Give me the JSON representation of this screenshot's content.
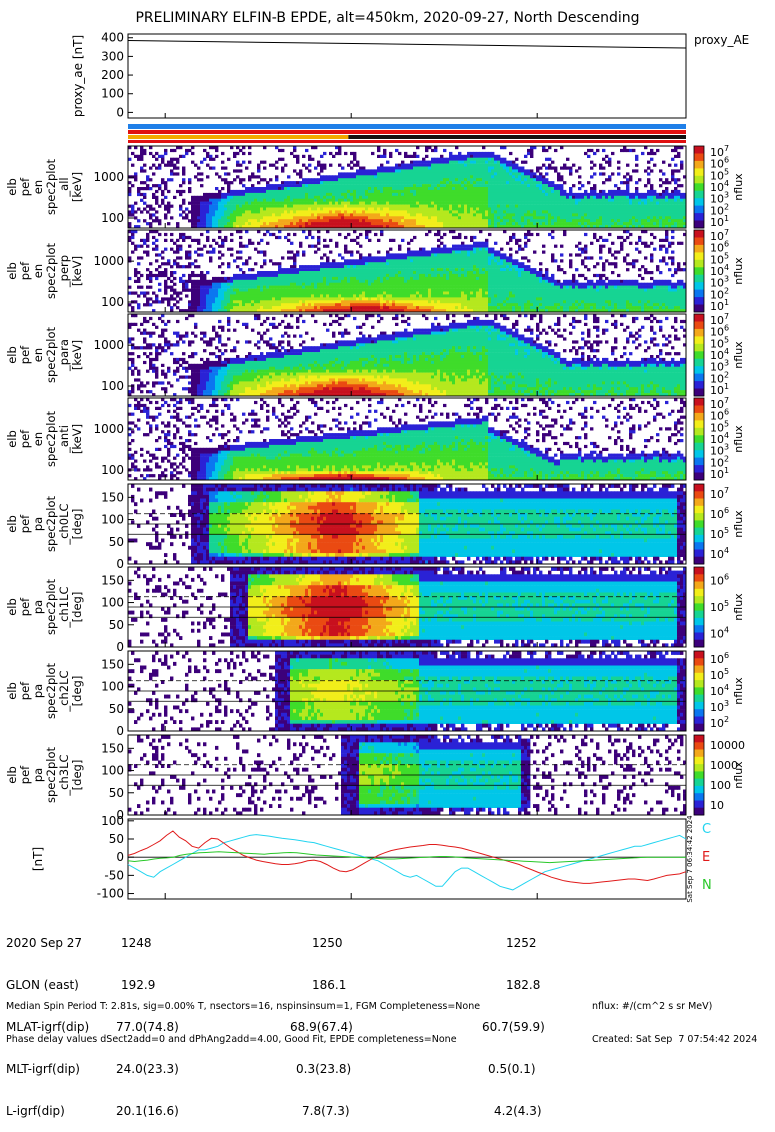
{
  "title": "PRELIMINARY ELFIN-B EPDE, alt=450km, 2020-09-27, North Descending",
  "colors": {
    "flux_palette": [
      "#3c007a",
      "#2a22d6",
      "#0b76f0",
      "#00c6e8",
      "#16d493",
      "#3fdc2a",
      "#b5e81e",
      "#f2ee1a",
      "#f3a81a",
      "#ea4a12",
      "#c8101e"
    ]
  },
  "chart_data": [
    {
      "type": "line",
      "panel": "proxy_ae",
      "ylabel": "proxy_ae [nT]",
      "legend": "proxy_AE",
      "yticks": [
        "0",
        "100",
        "200",
        "300",
        "400"
      ],
      "ylim": [
        -30,
        420
      ],
      "x": [
        "12:47.6",
        "12:53.6"
      ],
      "values": [
        385,
        345
      ],
      "orbit_bar": {
        "rows": [
          "#1f7fe8",
          "#e01010"
        ],
        "second_row_segments": [
          [
            "#f2a800",
            0,
            0.395
          ],
          [
            "#111111",
            0.395,
            1
          ]
        ]
      }
    },
    {
      "type": "heatmap",
      "panel": "en_spec2plot_all",
      "ylabel_lines": [
        "elb",
        "pef",
        "en",
        "spec2plot",
        "_all",
        "[keV]"
      ],
      "yticks": [
        "100",
        "1000"
      ],
      "colorbar": {
        "label": "nflux",
        "ticks": [
          "10^1",
          "10^2",
          "10^3",
          "10^4",
          "10^5",
          "10^6",
          "10^7"
        ],
        "scale": "log"
      }
    },
    {
      "type": "heatmap",
      "panel": "en_spec2plot_perp",
      "ylabel_lines": [
        "elb",
        "pef",
        "en",
        "spec2plot",
        "_perp",
        "[keV]"
      ],
      "yticks": [
        "100",
        "1000"
      ],
      "colorbar": {
        "label": "nflux",
        "ticks": [
          "10^1",
          "10^2",
          "10^3",
          "10^4",
          "10^5",
          "10^6",
          "10^7"
        ],
        "scale": "log"
      }
    },
    {
      "type": "heatmap",
      "panel": "en_spec2plot_para",
      "ylabel_lines": [
        "elb",
        "pef",
        "en",
        "spec2plot",
        "_para",
        "[keV]"
      ],
      "yticks": [
        "100",
        "1000"
      ],
      "colorbar": {
        "label": "nflux",
        "ticks": [
          "10^1",
          "10^2",
          "10^3",
          "10^4",
          "10^5",
          "10^6",
          "10^7"
        ],
        "scale": "log"
      }
    },
    {
      "type": "heatmap",
      "panel": "en_spec2plot_anti",
      "ylabel_lines": [
        "elb",
        "pef",
        "en",
        "spec2plot",
        "_anti",
        "[keV]"
      ],
      "yticks": [
        "100",
        "1000"
      ],
      "colorbar": {
        "label": "nflux",
        "ticks": [
          "10^1",
          "10^2",
          "10^3",
          "10^4",
          "10^5",
          "10^6",
          "10^7"
        ],
        "scale": "log"
      }
    },
    {
      "type": "heatmap",
      "panel": "pa_ch0LC",
      "ylabel_lines": [
        "elb",
        "pef",
        "pa",
        "spec2plot",
        "_ch0LC",
        "[deg]"
      ],
      "yticks": [
        "0",
        "50",
        "100",
        "150"
      ],
      "colorbar": {
        "label": "nflux",
        "ticks": [
          "10^4",
          "10^5",
          "10^6",
          "10^7"
        ],
        "scale": "log"
      }
    },
    {
      "type": "heatmap",
      "panel": "pa_ch1LC",
      "ylabel_lines": [
        "elb",
        "pef",
        "pa",
        "spec2plot",
        "_ch1LC",
        "[deg]"
      ],
      "yticks": [
        "0",
        "50",
        "100",
        "150"
      ],
      "colorbar": {
        "label": "nflux",
        "ticks": [
          "10^4",
          "10^5",
          "10^6"
        ],
        "scale": "log"
      }
    },
    {
      "type": "heatmap",
      "panel": "pa_ch2LC",
      "ylabel_lines": [
        "elb",
        "pef",
        "pa",
        "spec2plot",
        "_ch2LC",
        "[deg]"
      ],
      "yticks": [
        "0",
        "50",
        "100",
        "150"
      ],
      "colorbar": {
        "label": "nflux",
        "ticks": [
          "10^2",
          "10^3",
          "10^4",
          "10^5",
          "10^6"
        ],
        "scale": "log"
      }
    },
    {
      "type": "heatmap",
      "panel": "pa_ch3LC",
      "ylabel_lines": [
        "elb",
        "pef",
        "pa",
        "spec2plot",
        "_ch3LC",
        "[deg]"
      ],
      "yticks": [
        "0",
        "50",
        "100",
        "150"
      ],
      "colorbar": {
        "label": "nflux",
        "ticks": [
          "10",
          "100",
          "1000",
          "10000"
        ],
        "scale": "log"
      }
    },
    {
      "type": "line",
      "panel": "dB",
      "ylabel": "[nT]",
      "yticks": [
        "-100",
        "-50",
        "0",
        "50",
        "100"
      ],
      "ylim": [
        -115,
        105
      ],
      "legend": [
        "C",
        "E",
        "N"
      ],
      "series": [
        {
          "name": "C",
          "color": "#22d4f0",
          "values": [
            -20,
            -30,
            -40,
            -50,
            -55,
            -40,
            -30,
            -20,
            -10,
            0,
            10,
            20,
            20,
            25,
            30,
            40,
            45,
            50,
            55,
            60,
            62,
            60,
            58,
            55,
            52,
            50,
            48,
            45,
            42,
            40,
            35,
            30,
            25,
            20,
            15,
            10,
            5,
            0,
            -5,
            -10,
            -20,
            -30,
            -40,
            -50,
            -55,
            -50,
            -60,
            -70,
            -80,
            -80,
            -60,
            -40,
            -30,
            -30,
            -40,
            -50,
            -60,
            -70,
            -80,
            -85,
            -90,
            -80,
            -70,
            -60,
            -50,
            -40,
            -35,
            -30,
            -25,
            -20,
            -15,
            -10,
            -5,
            0,
            5,
            10,
            15,
            20,
            25,
            30,
            30,
            35,
            40,
            45,
            50,
            55,
            60,
            50
          ]
        },
        {
          "name": "E",
          "color": "#e01a1a",
          "values": [
            5,
            10,
            18,
            25,
            35,
            45,
            60,
            72,
            55,
            45,
            30,
            25,
            40,
            52,
            50,
            38,
            25,
            15,
            5,
            -2,
            -8,
            -12,
            -15,
            -18,
            -20,
            -20,
            -18,
            -15,
            -10,
            -8,
            -12,
            -20,
            -30,
            -38,
            -40,
            -35,
            -25,
            -15,
            -5,
            5,
            12,
            18,
            22,
            25,
            28,
            30,
            32,
            35,
            35,
            33,
            30,
            28,
            25,
            20,
            15,
            10,
            5,
            0,
            -5,
            -10,
            -15,
            -20,
            -28,
            -35,
            -42,
            -48,
            -55,
            -60,
            -65,
            -68,
            -70,
            -72,
            -72,
            -70,
            -68,
            -66,
            -64,
            -62,
            -60,
            -60,
            -62,
            -64,
            -60,
            -55,
            -50,
            -48,
            -46,
            -40
          ]
        },
        {
          "name": "N",
          "color": "#28c828",
          "values": [
            -10,
            -12,
            -10,
            -8,
            -5,
            -3,
            -2,
            0,
            5,
            8,
            10,
            12,
            13,
            14,
            15,
            14,
            13,
            12,
            11,
            10,
            9,
            8,
            10,
            11,
            12,
            13,
            12,
            10,
            8,
            6,
            5,
            4,
            3,
            2,
            1,
            0,
            -1,
            -2,
            -3,
            -4,
            -5,
            -5,
            -4,
            -3,
            -2,
            -1,
            0,
            1,
            2,
            2,
            1,
            0,
            -2,
            -3,
            -4,
            -5,
            -6,
            -7,
            -8,
            -9,
            -10,
            -11,
            -12,
            -13,
            -14,
            -15,
            -14,
            -13,
            -12,
            -11,
            -10,
            -9,
            -8,
            -7,
            -6,
            -5,
            -4,
            -3,
            -2,
            -1,
            0,
            0,
            0,
            0,
            0,
            0,
            0
          ]
        }
      ]
    }
  ],
  "time_axis": {
    "ticks": [
      "1248",
      "1250",
      "1252"
    ],
    "date": "2020 Sep 27"
  },
  "footer_rows": [
    {
      "label": "2020 Sep 27",
      "values": [
        "1248",
        "1250",
        "1252"
      ]
    },
    {
      "label": "GLON (east)",
      "values": [
        "192.9",
        "186.1",
        "182.8"
      ]
    },
    {
      "label": "MLAT-igrf(dip)",
      "values": [
        "77.0(74.8)",
        "68.9(67.4)",
        "60.7(59.9)"
      ]
    },
    {
      "label": "MLT-igrf(dip)",
      "values": [
        "24.0(23.3)",
        "0.3(23.8)",
        "0.5(0.1)"
      ]
    },
    {
      "label": "L-igrf(dip)",
      "values": [
        "20.1(16.6)",
        "7.8(7.3)",
        "4.2(4.3)"
      ]
    }
  ],
  "footnote_left_1": "Median Spin Period T: 2.81s, sig=0.00% T, nsectors=16, nspinsinsum=1, FGM Completeness=None",
  "footnote_left_2": "Phase delay values dSect2add=0 and dPhAng2add=4.00, Good Fit, EPDE completeness=None",
  "footnote_right_1": "nflux: #/(cm^2 s sr MeV)",
  "footnote_right_2": "Created: Sat Sep  7 07:54:42 2024",
  "timestamp_vertical": "Sat Sep  7 06:34:42 2024"
}
